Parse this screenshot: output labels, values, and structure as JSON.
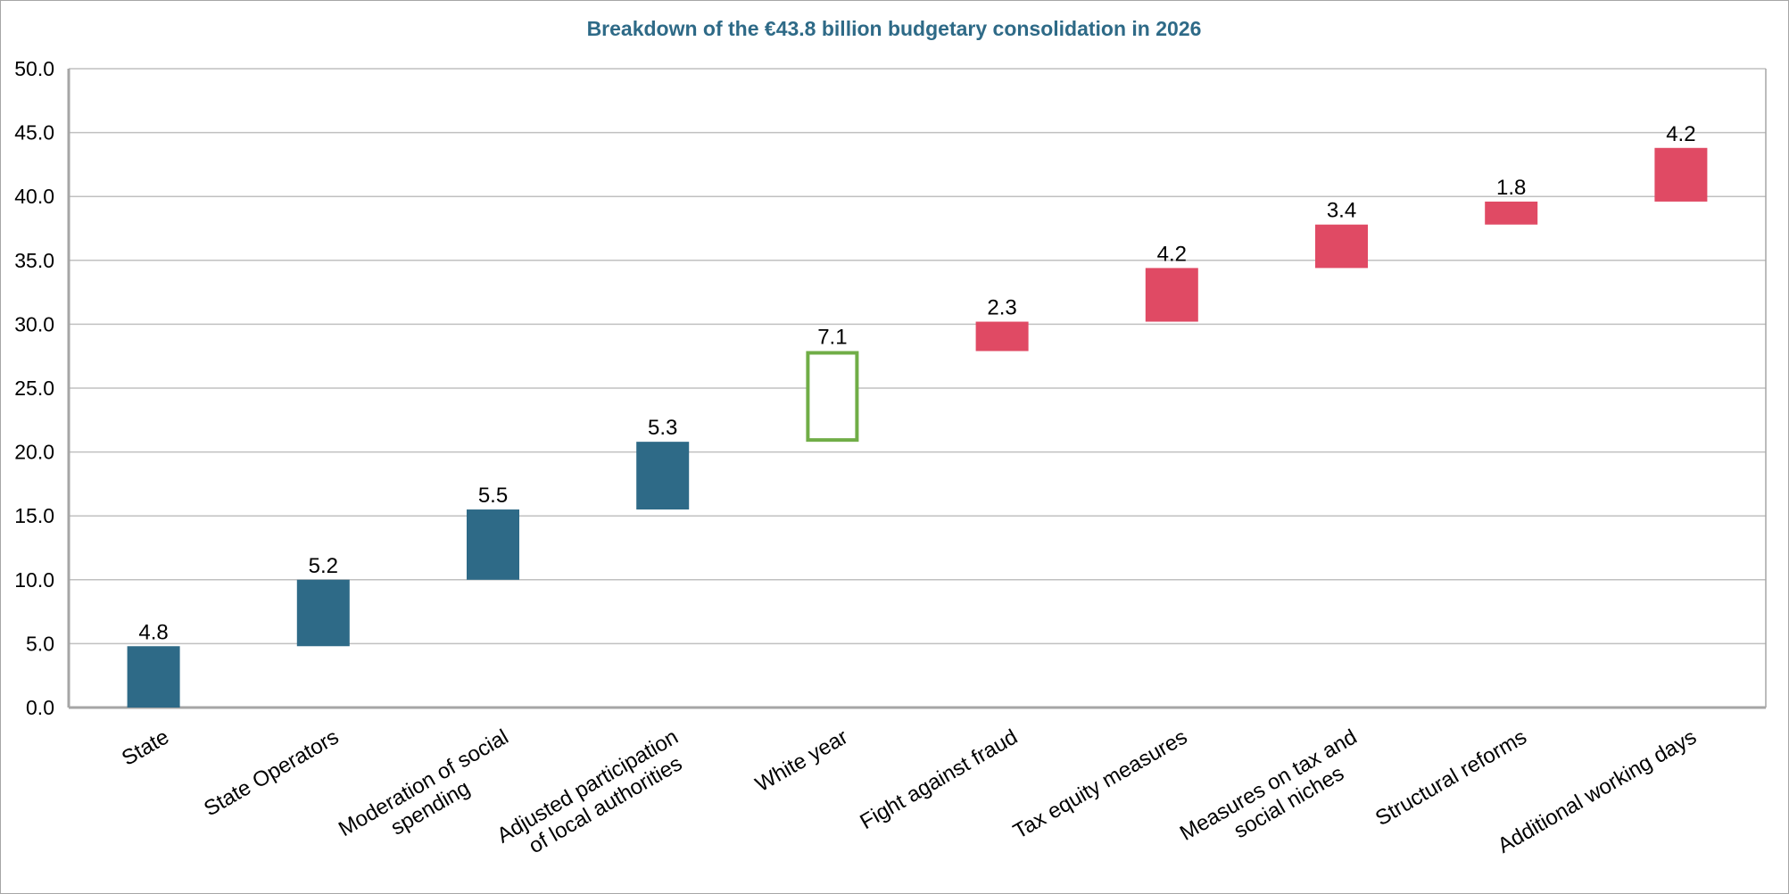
{
  "chart_data": {
    "type": "bar",
    "subtype": "waterfall",
    "title": "Breakdown of the €43.8 billion budgetary consolidation in 2026",
    "xlabel": "",
    "ylabel": "",
    "ylim": [
      0,
      50
    ],
    "yticks": [
      "0.0",
      "5.0",
      "10.0",
      "15.0",
      "20.0",
      "25.0",
      "30.0",
      "35.0",
      "40.0",
      "45.0",
      "50.0"
    ],
    "grid": true,
    "categories": [
      [
        "State"
      ],
      [
        "State Operators"
      ],
      [
        "Moderation of social",
        "spending"
      ],
      [
        "Adjusted participation",
        "of local authorities"
      ],
      [
        "White year"
      ],
      [
        "Fight against fraud"
      ],
      [
        "Tax equity measures"
      ],
      [
        "Measures on tax and",
        "social niches"
      ],
      [
        "Structural reforms"
      ],
      [
        "Additional working days"
      ]
    ],
    "values": [
      4.8,
      5.2,
      5.5,
      5.3,
      7.1,
      2.3,
      4.2,
      3.4,
      1.8,
      4.2
    ],
    "bases": [
      0,
      4.8,
      10.0,
      15.5,
      20.8,
      27.9,
      30.2,
      34.4,
      37.8,
      39.6
    ],
    "value_labels": [
      "4.8",
      "5.2",
      "5.5",
      "5.3",
      "7.1",
      "2.3",
      "4.2",
      "3.4",
      "1.8",
      "4.2"
    ],
    "bar_styles": [
      "spending",
      "spending",
      "spending",
      "spending",
      "outline",
      "revenue",
      "revenue",
      "revenue",
      "revenue",
      "revenue"
    ],
    "colors": {
      "spending": "#2e6a87",
      "revenue": "#e04a64",
      "outline": "#70ad47",
      "title": "#2e6a87",
      "grid": "#c0c0c0"
    }
  }
}
